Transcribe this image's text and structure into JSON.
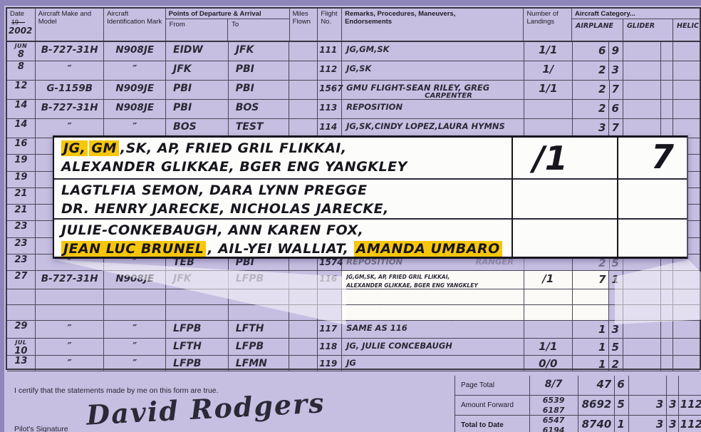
{
  "colors": {
    "page_lavender": "#c6bfe2",
    "surround_purple": "#8e85ba",
    "highlight_yellow": "#f6c60b",
    "ink": "#2b2936",
    "inset_white": "#fcfcfa"
  },
  "header": {
    "date": "Date",
    "printed_year": "19—",
    "written_year": "2002",
    "make": "Aircraft Make and Model",
    "ident": "Aircraft Identification Mark",
    "departure_arrival": "Points of Departure & Arrival",
    "from": "From",
    "to": "To",
    "miles": "Miles Flown",
    "flight_no": "Flight No.",
    "remarks": "Remarks, Procedures, Maneuvers, Endorsements",
    "landings": "Number of Landings",
    "category": "Aircraft Category...",
    "cat_airplane": "AIRPLANE",
    "cat_glider": "GLIDER",
    "cat_helic": "HELIC"
  },
  "rows": [
    {
      "month": "JUN",
      "day": "8",
      "make": "B-727-31H",
      "ident": "N908JE",
      "from": "EIDW",
      "to": "JFK",
      "miles": "",
      "flight": "111",
      "remarks": "JG,GM,SK",
      "landings": "1/1",
      "air": "6",
      "air_sub": "9"
    },
    {
      "day": "8",
      "make": "″",
      "ident": "″",
      "from": "JFK",
      "to": "PBI",
      "miles": "",
      "flight": "112",
      "remarks": "JG,SK",
      "landings": "1/",
      "air": "2",
      "air_sub": "3"
    },
    {
      "day": "12",
      "make": "G-1159B",
      "ident": "N909JE",
      "from": "PBI",
      "to": "PBI",
      "miles": "",
      "flight": "1567",
      "remarks": "GMU FLIGHT-SEAN RILEY, GREG",
      "remarks2": "CARPENTER",
      "landings": "1/1",
      "air": "2",
      "air_sub": "7"
    },
    {
      "day": "14",
      "make": "B-727-31H",
      "ident": "N908JE",
      "from": "PBI",
      "to": "BOS",
      "miles": "",
      "flight": "113",
      "remarks": "REPOSITION",
      "landings": "",
      "air": "2",
      "air_sub": "6"
    },
    {
      "day": "14",
      "make": "″",
      "ident": "″",
      "from": "BOS",
      "to": "TEST",
      "miles": "",
      "flight": "114",
      "remarks": "JG,SK,CINDY LOPEZ,LAURA HYMNS",
      "landings": "",
      "air": "3",
      "air_sub": "7"
    },
    {
      "day": "16"
    },
    {
      "day": "19",
      "make": "G"
    },
    {
      "day": "19"
    },
    {
      "day": "21"
    },
    {
      "day": "21"
    },
    {
      "day": "23"
    },
    {
      "day": "23"
    },
    {
      "day": "23",
      "make": "″",
      "ident": "″",
      "from": "TEB",
      "to": "PBI",
      "miles": "",
      "flight": "1574",
      "remarks": "REPOSITION",
      "remarks_right": "RANGER",
      "landings": "",
      "air": "2",
      "air_sub": "5",
      "faded": true
    },
    {
      "day": "27",
      "make": "B-727-31H",
      "ident": "N908JE",
      "from": "JFK",
      "to": "LFPB",
      "miles": "",
      "flight": "116",
      "tiny": true,
      "landings": "/1",
      "air": "7",
      "air_sub": "1",
      "faded_route": true
    },
    {
      "day": ""
    },
    {
      "day": ""
    },
    {
      "day": "29",
      "make": "″",
      "ident": "″",
      "from": "LFPB",
      "to": "LFTH",
      "miles": "",
      "flight": "117",
      "remarks": "SAME AS 116",
      "landings": "",
      "air": "1",
      "air_sub": "3"
    },
    {
      "month": "JUL",
      "day": "10",
      "make": "″",
      "ident": "″",
      "from": "LFTH",
      "to": "LFPB",
      "miles": "",
      "flight": "118",
      "remarks": "JG, JULIE CONCEBAUGH",
      "landings": "1/1",
      "air": "1",
      "air_sub": "5"
    },
    {
      "day": "13",
      "make": "″",
      "ident": "″",
      "from": "LFPB",
      "to": "LFMN",
      "miles": "",
      "flight": "119",
      "remarks": "JG",
      "landings": "0/0",
      "air": "1",
      "air_sub": "2"
    }
  ],
  "inset": {
    "landings": "/1",
    "airplane": "7",
    "lines": [
      {
        "segments": [
          {
            "text": "JG,",
            "hl": true
          },
          {
            "text": "GM",
            "hl": true
          },
          {
            "text": ",SK, AP, FRIED GRIL FLIKKAI,",
            "hl": false
          }
        ]
      },
      {
        "segments": [
          {
            "text": "ALEXANDER GLIKKAE, BGER ENG YANGKLEY",
            "hl": false
          }
        ]
      },
      {
        "segments": [
          {
            "text": "LAGTLFIA SEMON, DARA LYNN PREGGE",
            "hl": false
          }
        ]
      },
      {
        "segments": [
          {
            "text": "DR. HENRY JARECKE, NICHOLAS JARECKE,",
            "hl": false
          }
        ]
      },
      {
        "segments": [
          {
            "text": "JULIE-CONKEBAUGH, ANN KAREN FOX,",
            "hl": false
          }
        ]
      },
      {
        "segments": [
          {
            "text": "JEAN LUC BRUNEL",
            "hl": true
          },
          {
            "text": ", AIL-YEI WALLIAT, ",
            "hl": false
          },
          {
            "text": "AMANDA UMBARO",
            "hl": true
          }
        ]
      }
    ]
  },
  "footer": {
    "rows": [
      {
        "label": "Page Total",
        "landings": "8/7",
        "landings2": "",
        "air": "47",
        "air_sub": "6",
        "glider": "",
        "glider_sub": "",
        "helic": "",
        "bold": false
      },
      {
        "label": "Amount Forward",
        "landings": "6539",
        "landings2": "6187",
        "air": "8692",
        "air_sub": "5",
        "glider": "3",
        "glider_sub": "3",
        "helic": "112",
        "bold": false
      },
      {
        "label": "Total to Date",
        "landings": "6547",
        "landings2": "6194",
        "air": "8740",
        "air_sub": "1",
        "glider": "3",
        "glider_sub": "3",
        "helic": "112",
        "bold": true
      }
    ]
  },
  "page": {
    "certification": "I certify that the statements made by me on this form are true.",
    "signature_label": "Pilot's Signature",
    "signature": "David Rodgers"
  }
}
